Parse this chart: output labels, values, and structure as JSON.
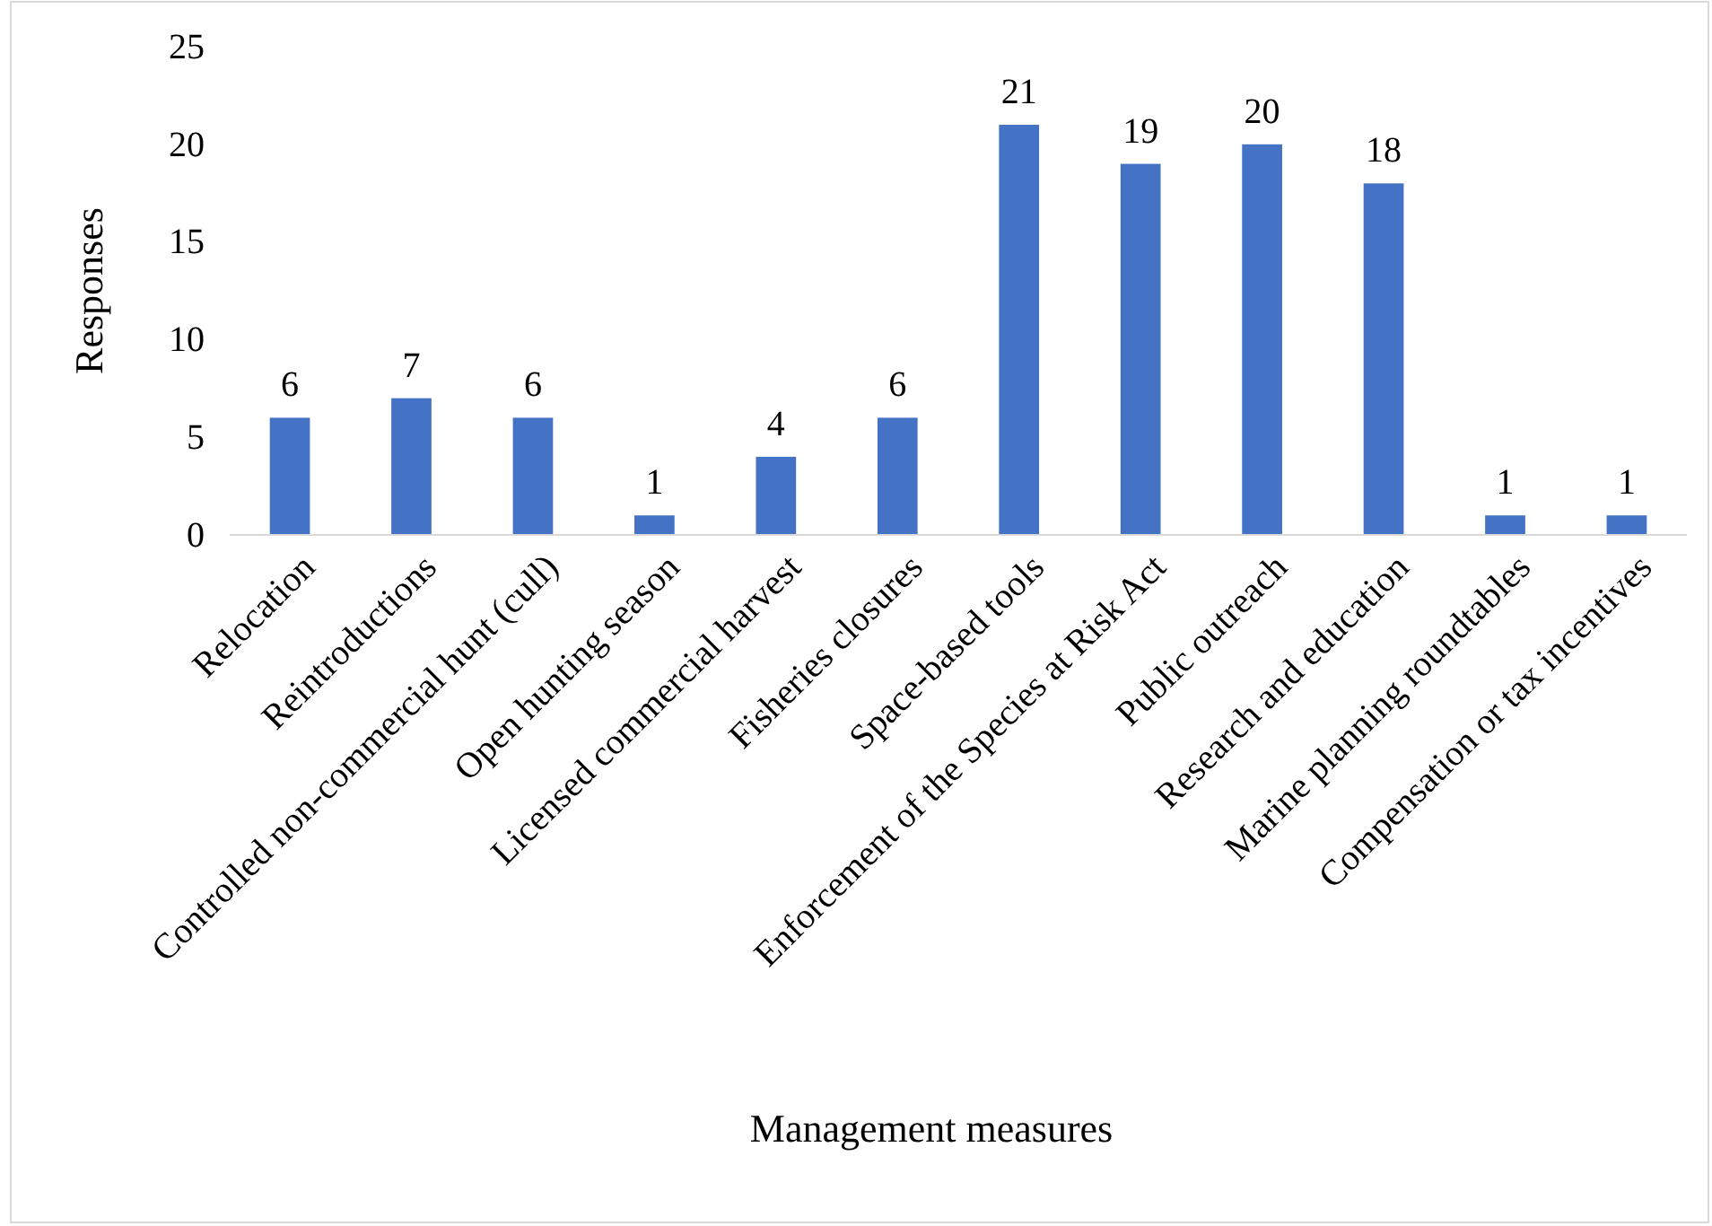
{
  "chart_data": {
    "type": "bar",
    "xlabel": "Management measures",
    "ylabel": "Responses",
    "categories": [
      "Relocation",
      "Reintroductions",
      "Controlled non-commercial hunt (cull)",
      "Open hunting season",
      "Licensed commercial harvest",
      "Fisheries closures",
      "Space-based tools",
      "Enforcement of the Species at Risk Act",
      "Public outreach",
      "Research and education",
      "Marine planning roundtables",
      "Compensation or tax incentives"
    ],
    "values": [
      6,
      7,
      6,
      1,
      4,
      6,
      21,
      19,
      20,
      18,
      1,
      1
    ],
    "color": "#4472c4",
    "ylim": [
      0,
      25
    ],
    "yticks": [
      0,
      5,
      10,
      15,
      20,
      25
    ],
    "grid": false,
    "data_labels": true
  }
}
